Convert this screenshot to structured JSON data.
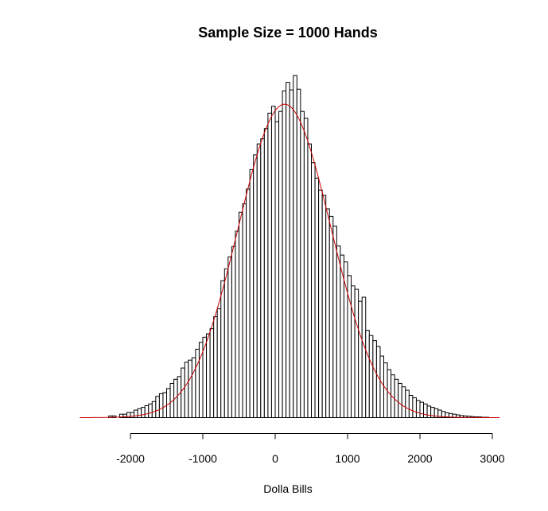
{
  "chart_data": {
    "type": "bar",
    "title": "Sample Size = 1000 Hands",
    "xlabel": "Dolla Bills",
    "ylabel": "",
    "xlim": [
      -2700,
      3100
    ],
    "ylim": [
      0,
      1
    ],
    "x_ticks": [
      -2000,
      -1000,
      0,
      1000,
      2000,
      3000
    ],
    "x_tick_labels": [
      "-2000",
      "-1000",
      "0",
      "1000",
      "2000",
      "3000"
    ],
    "y_axis_visible": false,
    "grid": false,
    "legend": "none",
    "bin_width": 50,
    "bin_starts": [
      -2700,
      -2650,
      -2600,
      -2550,
      -2500,
      -2450,
      -2400,
      -2350,
      -2300,
      -2250,
      -2200,
      -2150,
      -2100,
      -2050,
      -2000,
      -1950,
      -1900,
      -1850,
      -1800,
      -1750,
      -1700,
      -1650,
      -1600,
      -1550,
      -1500,
      -1450,
      -1400,
      -1350,
      -1300,
      -1250,
      -1200,
      -1150,
      -1100,
      -1050,
      -1000,
      -950,
      -900,
      -850,
      -800,
      -750,
      -700,
      -650,
      -600,
      -550,
      -500,
      -450,
      -400,
      -350,
      -300,
      -250,
      -200,
      -150,
      -100,
      -50,
      0,
      50,
      100,
      150,
      200,
      250,
      300,
      350,
      400,
      450,
      500,
      550,
      600,
      650,
      700,
      750,
      800,
      850,
      900,
      950,
      1000,
      1050,
      1100,
      1150,
      1200,
      1250,
      1300,
      1350,
      1400,
      1450,
      1500,
      1550,
      1600,
      1650,
      1700,
      1750,
      1800,
      1850,
      1900,
      1950,
      2000,
      2050,
      2100,
      2150,
      2200,
      2250,
      2300,
      2350,
      2400,
      2450,
      2500,
      2550,
      2600,
      2650,
      2700,
      2750,
      2800,
      2850,
      2900,
      2950,
      3000,
      3050
    ],
    "values": [
      0.0,
      0.0,
      0.0,
      0.0,
      0.0,
      0.0,
      0.0,
      0.0,
      0.005,
      0.005,
      0.0,
      0.01,
      0.01,
      0.015,
      0.015,
      0.022,
      0.026,
      0.03,
      0.035,
      0.04,
      0.047,
      0.062,
      0.07,
      0.073,
      0.085,
      0.1,
      0.112,
      0.12,
      0.145,
      0.162,
      0.168,
      0.175,
      0.2,
      0.22,
      0.235,
      0.245,
      0.26,
      0.295,
      0.318,
      0.4,
      0.435,
      0.47,
      0.5,
      0.545,
      0.6,
      0.625,
      0.668,
      0.725,
      0.768,
      0.8,
      0.815,
      0.845,
      0.89,
      0.91,
      0.865,
      0.895,
      0.955,
      0.98,
      0.958,
      1.0,
      0.96,
      0.895,
      0.875,
      0.8,
      0.745,
      0.7,
      0.665,
      0.65,
      0.61,
      0.588,
      0.56,
      0.502,
      0.475,
      0.455,
      0.415,
      0.385,
      0.375,
      0.34,
      0.352,
      0.255,
      0.24,
      0.225,
      0.208,
      0.18,
      0.16,
      0.14,
      0.125,
      0.112,
      0.1,
      0.09,
      0.08,
      0.065,
      0.058,
      0.05,
      0.045,
      0.04,
      0.034,
      0.03,
      0.026,
      0.022,
      0.018,
      0.014,
      0.012,
      0.01,
      0.008,
      0.006,
      0.005,
      0.004,
      0.003,
      0.002,
      0.002,
      0.001,
      0.001,
      0.0,
      0.0,
      0.0
    ],
    "density_curve": {
      "type": "normal",
      "mean": 130,
      "sd": 640,
      "peak": 0.916,
      "color": "#cc0000"
    },
    "bar_fill": "#ffffff",
    "bar_stroke": "#000000"
  }
}
